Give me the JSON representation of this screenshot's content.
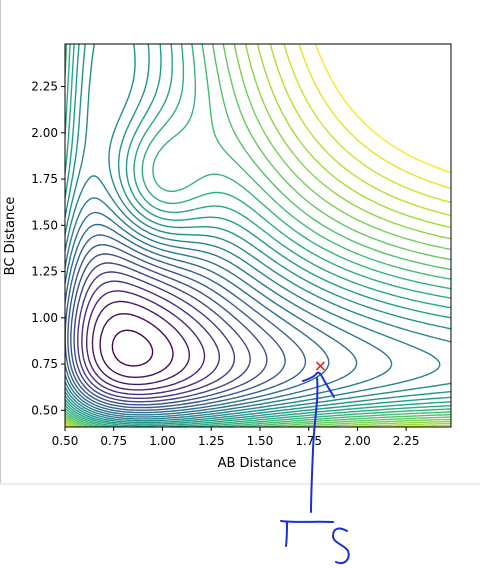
{
  "chart_data": {
    "type": "contour",
    "title": "",
    "xlabel": "AB Distance",
    "ylabel": "BC Distance",
    "xlim": [
      0.5,
      2.48
    ],
    "ylim": [
      0.41,
      2.48
    ],
    "xticks": [
      "0.50",
      "0.75",
      "1.00",
      "1.25",
      "1.50",
      "1.75",
      "2.00",
      "2.25"
    ],
    "yticks": [
      "0.50",
      "0.75",
      "1.00",
      "1.25",
      "1.50",
      "1.75",
      "2.00",
      "2.25"
    ],
    "colormap": "viridis",
    "contour_levels": 30,
    "surface": "symmetric potential energy well with a valley along both axes and a transition region near the corner",
    "marker": {
      "symbol": "x",
      "x": 1.81,
      "y": 0.74,
      "color": "#e32020"
    },
    "grid": false
  },
  "annotation": {
    "text": "TS",
    "color": "#1a2fd6",
    "style": "handwritten"
  }
}
